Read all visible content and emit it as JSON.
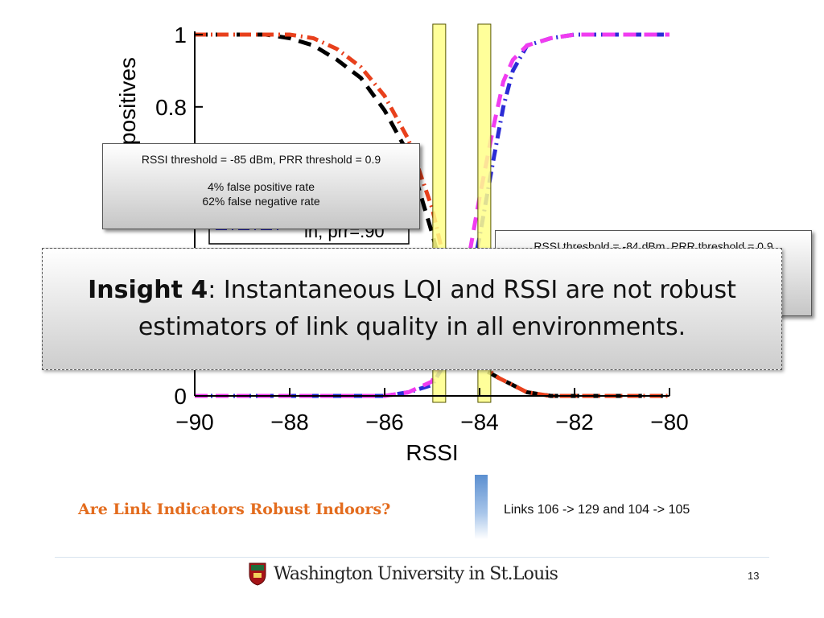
{
  "chart_data": {
    "type": "line",
    "xlabel": "RSSI",
    "ylabel": "positives",
    "y_tick_values": [
      0,
      0.2,
      0.4,
      0.6,
      0.8,
      1
    ],
    "y_tick_labels": [
      "0",
      "",
      "",
      "",
      "0.8",
      "1"
    ],
    "x_ticks": [
      -90,
      -88,
      -86,
      -84,
      -82,
      -80
    ],
    "x_tick_labels": [
      "−90",
      "−88",
      "−86",
      "−84",
      "−82",
      "−80"
    ],
    "xlim": [
      -90,
      -80
    ],
    "ylim": [
      0,
      1
    ],
    "legend_fragment": "in, prr=.90",
    "threshold_bands": [
      -84.85,
      -83.9
    ],
    "series": [
      {
        "color": "#000000",
        "style": "dashed",
        "x": [
          -90,
          -89,
          -88.5,
          -88,
          -87.5,
          -87,
          -86.5,
          -86,
          -85.5,
          -85,
          -84.7,
          -84.4,
          -84,
          -83.6,
          -83.3,
          -83,
          -82.5,
          -82,
          -81.5,
          -81,
          -80
        ],
        "y": [
          1,
          1,
          1,
          0.99,
          0.97,
          0.93,
          0.88,
          0.79,
          0.67,
          0.45,
          0.3,
          0.2,
          0.08,
          0.05,
          0.03,
          0.01,
          0,
          0,
          0,
          0,
          0
        ]
      },
      {
        "color": "#e8401c",
        "style": "dashdot",
        "x": [
          -90,
          -89,
          -88.5,
          -88,
          -87.5,
          -87,
          -86.5,
          -86,
          -85.5,
          -85,
          -84.7,
          -84.4,
          -84,
          -83.6,
          -83.3,
          -83,
          -82.5,
          -82,
          -81.5,
          -81,
          -80
        ],
        "y": [
          1,
          1,
          1,
          1,
          0.99,
          0.96,
          0.91,
          0.83,
          0.71,
          0.52,
          0.35,
          0.22,
          0.09,
          0.05,
          0.03,
          0.01,
          0,
          0,
          0,
          0,
          0
        ]
      },
      {
        "color": "#2b2bd6",
        "style": "dashdot",
        "x": [
          -90,
          -86,
          -85.5,
          -85,
          -84.6,
          -84.3,
          -84,
          -83.7,
          -83.5,
          -83.3,
          -83,
          -82.5,
          -82,
          -81,
          -80
        ],
        "y": [
          0,
          0,
          0.01,
          0.03,
          0.12,
          0.25,
          0.44,
          0.66,
          0.8,
          0.9,
          0.97,
          0.99,
          1,
          1,
          1
        ]
      },
      {
        "color": "#f03cf0",
        "style": "dashed",
        "x": [
          -90,
          -86,
          -85.5,
          -85,
          -84.6,
          -84.3,
          -84,
          -83.7,
          -83.5,
          -83.3,
          -83,
          -82.5,
          -82,
          -81,
          -80
        ],
        "y": [
          0,
          0,
          0.01,
          0.04,
          0.17,
          0.33,
          0.55,
          0.75,
          0.87,
          0.93,
          0.97,
          0.99,
          1,
          1,
          1
        ]
      }
    ]
  },
  "callouts": [
    {
      "line1": "RSSI threshold = -85 dBm, PRR threshold = 0.9",
      "line2": "4% false positive rate",
      "line3": "62% false negative rate"
    },
    {
      "line1": "RSSI threshold = -84 dBm, PRR threshold = 0.9"
    }
  ],
  "insight": {
    "label": "Insight 4",
    "text": ": Instantaneous LQI and RSSI are not robust estimators of link quality in all environments."
  },
  "footer": {
    "title": "Are Link Indicators Robust Indoors?",
    "links": "Links 106 -> 129 and 104 -> 105",
    "logo_text": "Washington University in St.Louis",
    "page_number": "13"
  },
  "colors": {
    "threshold_band_fill": "#ffff88",
    "threshold_band_stroke": "#555500",
    "title_orange": "#e36c1e",
    "accent_bar": "#5b8fd0"
  }
}
